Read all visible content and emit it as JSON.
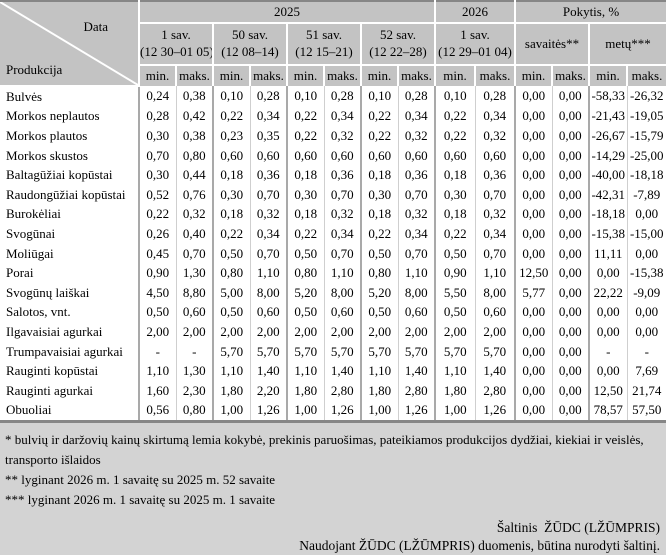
{
  "table": {
    "corner": {
      "top": "Data",
      "bottom": "Produkcija"
    },
    "col_subheader": {
      "min": "min.",
      "maks": "maks."
    },
    "groups": [
      {
        "label": "2025",
        "weeks": [
          {
            "label": "1 sav.",
            "range": "(12 30–01 05)"
          },
          {
            "label": "50 sav.",
            "range": "(12 08–14)"
          },
          {
            "label": "51 sav.",
            "range": "(12 15–21)"
          },
          {
            "label": "52 sav.",
            "range": "(12 22–28)"
          }
        ]
      },
      {
        "label": "2026",
        "weeks": [
          {
            "label": "1 sav.",
            "range": "(12 29–01 04)"
          }
        ]
      },
      {
        "label": "Pokytis, %",
        "weeks": [
          {
            "label": "savaitės**",
            "range": ""
          },
          {
            "label": "metų***",
            "range": ""
          }
        ]
      }
    ],
    "rows": [
      {
        "name": "Bulvės",
        "values": [
          "0,24",
          "0,38",
          "0,10",
          "0,28",
          "0,10",
          "0,28",
          "0,10",
          "0,28",
          "0,10",
          "0,28",
          "0,00",
          "0,00",
          "-58,33",
          "-26,32"
        ]
      },
      {
        "name": "Morkos neplautos",
        "values": [
          "0,28",
          "0,42",
          "0,22",
          "0,34",
          "0,22",
          "0,34",
          "0,22",
          "0,34",
          "0,22",
          "0,34",
          "0,00",
          "0,00",
          "-21,43",
          "-19,05"
        ]
      },
      {
        "name": "Morkos plautos",
        "values": [
          "0,30",
          "0,38",
          "0,23",
          "0,35",
          "0,22",
          "0,32",
          "0,22",
          "0,32",
          "0,22",
          "0,32",
          "0,00",
          "0,00",
          "-26,67",
          "-15,79"
        ]
      },
      {
        "name": "Morkos skustos",
        "values": [
          "0,70",
          "0,80",
          "0,60",
          "0,60",
          "0,60",
          "0,60",
          "0,60",
          "0,60",
          "0,60",
          "0,60",
          "0,00",
          "0,00",
          "-14,29",
          "-25,00"
        ]
      },
      {
        "name": "Baltagūžiai kopūstai",
        "values": [
          "0,30",
          "0,44",
          "0,18",
          "0,36",
          "0,18",
          "0,36",
          "0,18",
          "0,36",
          "0,18",
          "0,36",
          "0,00",
          "0,00",
          "-40,00",
          "-18,18"
        ]
      },
      {
        "name": "Raudongūžiai kopūstai",
        "values": [
          "0,52",
          "0,76",
          "0,30",
          "0,70",
          "0,30",
          "0,70",
          "0,30",
          "0,70",
          "0,30",
          "0,70",
          "0,00",
          "0,00",
          "-42,31",
          "-7,89"
        ]
      },
      {
        "name": "Burokėliai",
        "values": [
          "0,22",
          "0,32",
          "0,18",
          "0,32",
          "0,18",
          "0,32",
          "0,18",
          "0,32",
          "0,18",
          "0,32",
          "0,00",
          "0,00",
          "-18,18",
          "0,00"
        ]
      },
      {
        "name": "Svogūnai",
        "values": [
          "0,26",
          "0,40",
          "0,22",
          "0,34",
          "0,22",
          "0,34",
          "0,22",
          "0,34",
          "0,22",
          "0,34",
          "0,00",
          "0,00",
          "-15,38",
          "-15,00"
        ]
      },
      {
        "name": "Moliūgai",
        "values": [
          "0,45",
          "0,70",
          "0,50",
          "0,70",
          "0,50",
          "0,70",
          "0,50",
          "0,70",
          "0,50",
          "0,70",
          "0,00",
          "0,00",
          "11,11",
          "0,00"
        ]
      },
      {
        "name": "Porai",
        "values": [
          "0,90",
          "1,30",
          "0,80",
          "1,10",
          "0,80",
          "1,10",
          "0,80",
          "1,10",
          "0,90",
          "1,10",
          "12,50",
          "0,00",
          "0,00",
          "-15,38"
        ]
      },
      {
        "name": "Svogūnų laiškai",
        "values": [
          "4,50",
          "8,80",
          "5,00",
          "8,00",
          "5,20",
          "8,00",
          "5,20",
          "8,00",
          "5,50",
          "8,00",
          "5,77",
          "0,00",
          "22,22",
          "-9,09"
        ]
      },
      {
        "name": "Salotos, vnt.",
        "values": [
          "0,50",
          "0,60",
          "0,50",
          "0,60",
          "0,50",
          "0,60",
          "0,50",
          "0,60",
          "0,50",
          "0,60",
          "0,00",
          "0,00",
          "0,00",
          "0,00"
        ]
      },
      {
        "name": "Ilgavaisiai agurkai",
        "values": [
          "2,00",
          "2,00",
          "2,00",
          "2,00",
          "2,00",
          "2,00",
          "2,00",
          "2,00",
          "2,00",
          "2,00",
          "0,00",
          "0,00",
          "0,00",
          "0,00"
        ]
      },
      {
        "name": "Trumpavaisiai agurkai",
        "values": [
          "-",
          "-",
          "5,70",
          "5,70",
          "5,70",
          "5,70",
          "5,70",
          "5,70",
          "5,70",
          "5,70",
          "0,00",
          "0,00",
          "-",
          "-"
        ]
      },
      {
        "name": "Rauginti kopūstai",
        "values": [
          "1,10",
          "1,30",
          "1,10",
          "1,40",
          "1,10",
          "1,40",
          "1,10",
          "1,40",
          "1,10",
          "1,40",
          "0,00",
          "0,00",
          "0,00",
          "7,69"
        ]
      },
      {
        "name": "Rauginti agurkai",
        "values": [
          "1,60",
          "2,30",
          "1,80",
          "2,20",
          "1,80",
          "2,80",
          "1,80",
          "2,80",
          "1,80",
          "2,80",
          "0,00",
          "0,00",
          "12,50",
          "21,74"
        ]
      },
      {
        "name": "Obuoliai",
        "values": [
          "0,56",
          "0,80",
          "1,00",
          "1,26",
          "1,00",
          "1,26",
          "1,00",
          "1,26",
          "1,00",
          "1,26",
          "0,00",
          "0,00",
          "78,57",
          "57,50"
        ]
      }
    ]
  },
  "footnotes": [
    "* bulvių ir daržovių kainų skirtumą lemia kokybė, prekinis paruošimas, pateikiamos produkcijos dydžiai, kiekiai ir veislės, transporto išlaidos",
    "** lyginant 2026 m. 1 savaitę su 2025 m. 52 savaite",
    "*** lyginant 2026 m. 1 savaitę su 2025 m. 1 savaite"
  ],
  "source": {
    "line1": "Šaltinis  ŽŪDC (LŽŪMPRIS)",
    "line2": "Naudojant ŽŪDC (LŽŪMPRIS) duomenis, būtina nurodyti šaltinį."
  },
  "colors": {
    "page_bg": "#d3d3d3",
    "header_bg": "#c3c3c3",
    "cell_bg": "#ffffff",
    "table_border": "#868686",
    "group_line": "#a9a9a9",
    "inner_line": "#cfcfcf"
  }
}
